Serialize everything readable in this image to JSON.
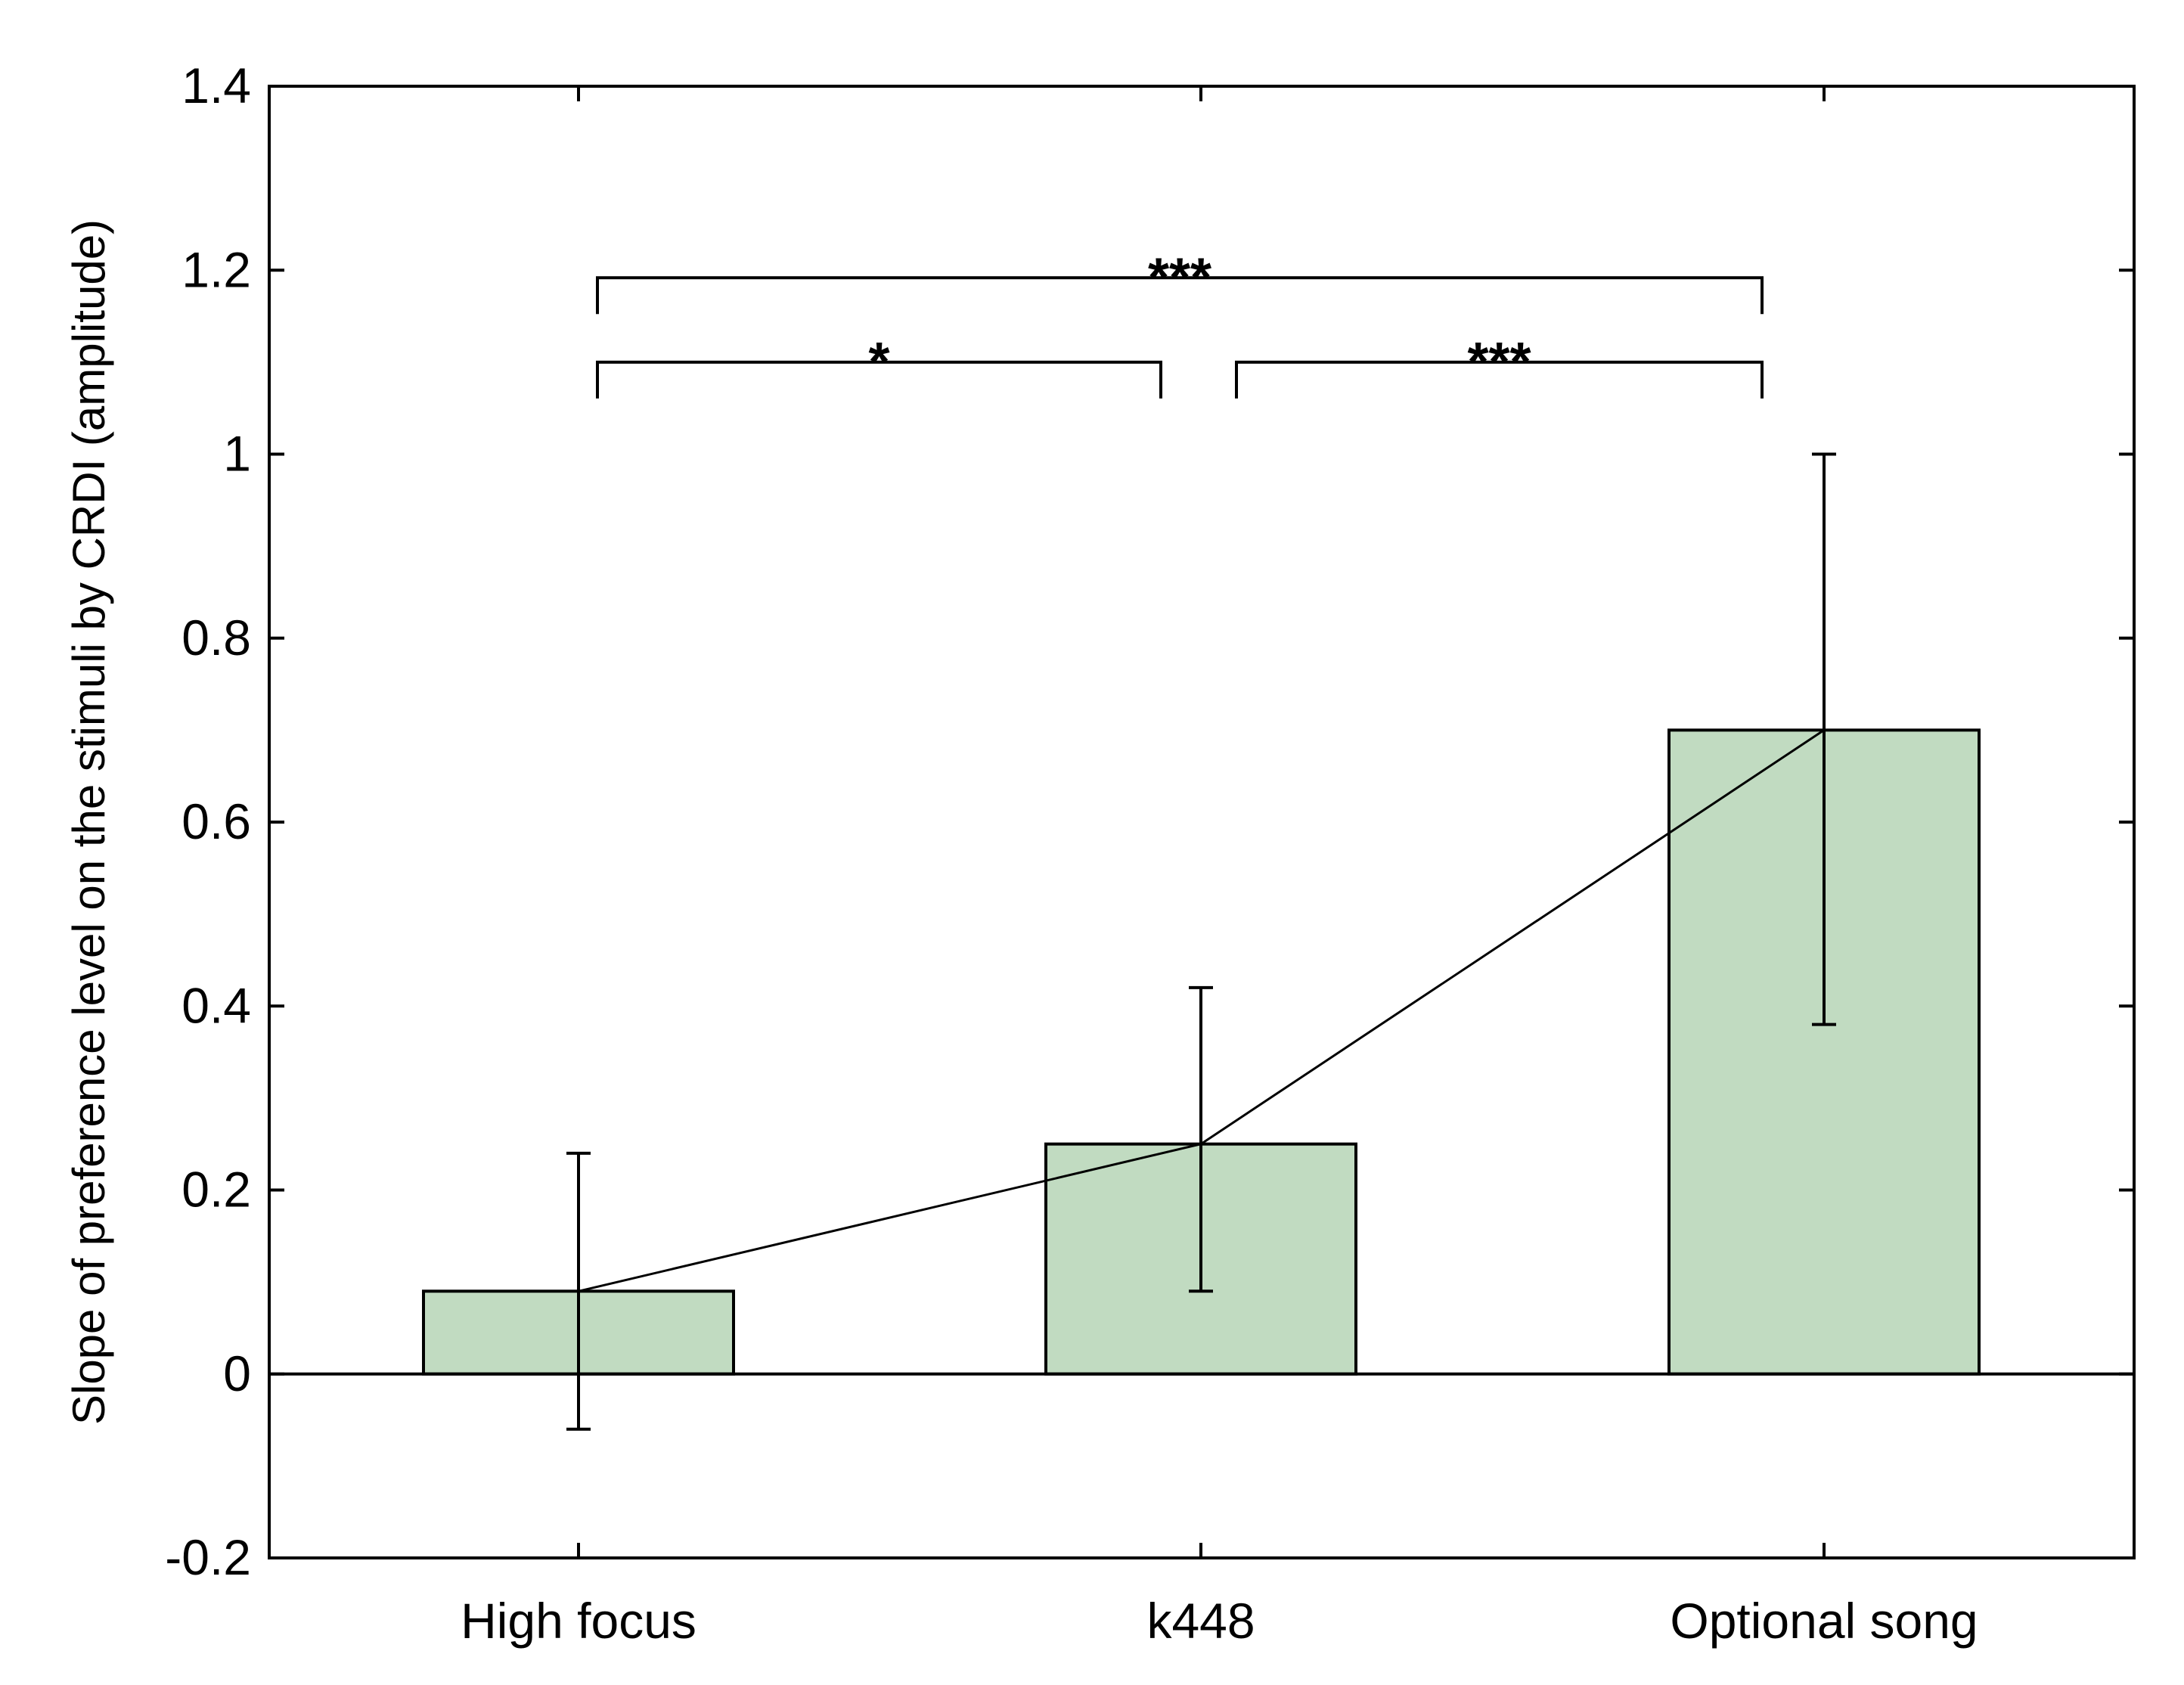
{
  "chart_data": {
    "type": "bar",
    "categories": [
      "High focus",
      "k448",
      "Optional song"
    ],
    "series": [
      {
        "values": [
          0.09,
          0.25,
          0.7
        ],
        "error_low": [
          -0.06,
          0.09,
          0.38
        ],
        "error_high": [
          0.24,
          0.42,
          1.0
        ]
      }
    ],
    "connecting_line": true,
    "ylabel": "Slope of preference level on the stimuli by CRDI (amplitude)",
    "xlabel": "",
    "title": "",
    "ylim": [
      -0.2,
      1.4
    ],
    "yticks": [
      -0.2,
      0,
      0.2,
      0.4,
      0.6,
      0.8,
      1,
      1.2,
      1.4
    ],
    "ytick_labels": [
      "-0.2",
      "0",
      "0.2",
      "0.4",
      "0.6",
      "0.8",
      "1",
      "1.2",
      "1.4"
    ],
    "zero_line": true,
    "grid": false,
    "bar_color": "#c1dbc1",
    "significance": [
      {
        "from": 0,
        "to": 1,
        "label": "*",
        "level": 1.1
      },
      {
        "from": 1,
        "to": 2,
        "label": "***",
        "level": 1.1
      },
      {
        "from": 0,
        "to": 2,
        "label": "***",
        "level": 1.2
      }
    ]
  }
}
